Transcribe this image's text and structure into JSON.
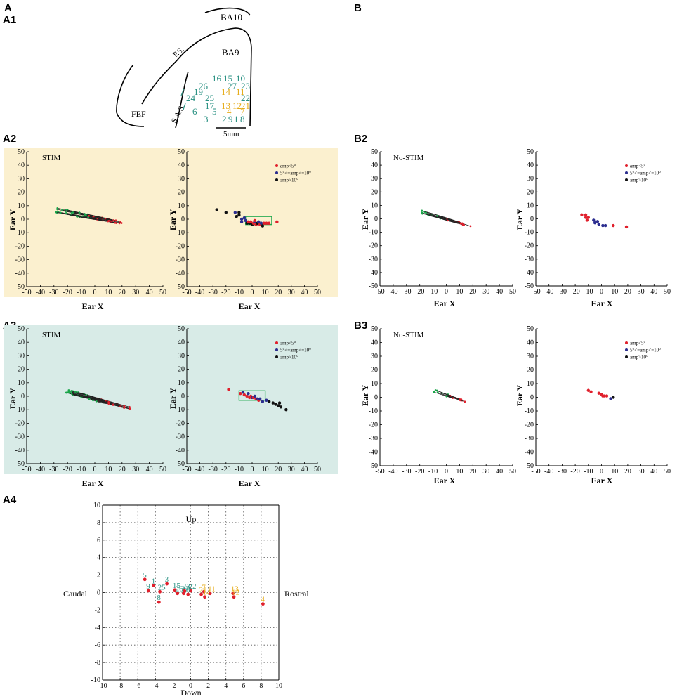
{
  "figure": {
    "panel_labels": {
      "A": "A",
      "A1": "A1",
      "A2": "A2",
      "A3": "A3",
      "A4": "A4",
      "B": "B",
      "B2": "B2",
      "B3": "B3"
    },
    "colors": {
      "stim_a2_bg": "#fbf0cf",
      "stim_a3_bg": "#d8ebe7",
      "teal": "#2a9183",
      "yellow": "#e6ac1a",
      "red": "#e0202c",
      "blue": "#2b2d8f",
      "black": "#111111",
      "green": "#1aa64a"
    }
  },
  "map_a1": {
    "labels": {
      "ba10": "BA10",
      "ba9": "BA9",
      "ps": "P.S.",
      "sas": "S.A.S.",
      "fef": "FEF",
      "scale": "5mm"
    },
    "sites": [
      {
        "n": "16",
        "c": "teal"
      },
      {
        "n": "15",
        "c": "teal"
      },
      {
        "n": "10",
        "c": "teal"
      },
      {
        "n": "27",
        "c": "teal"
      },
      {
        "n": "23",
        "c": "teal"
      },
      {
        "n": "26",
        "c": "teal"
      },
      {
        "n": "19",
        "c": "teal"
      },
      {
        "n": "14",
        "c": "yellow"
      },
      {
        "n": "11",
        "c": "yellow"
      },
      {
        "n": "24",
        "c": "teal"
      },
      {
        "n": "25",
        "c": "teal"
      },
      {
        "n": "22",
        "c": "teal"
      },
      {
        "n": "17",
        "c": "teal"
      },
      {
        "n": "13",
        "c": "yellow"
      },
      {
        "n": "12",
        "c": "yellow"
      },
      {
        "n": "21",
        "c": "yellow"
      },
      {
        "n": "6",
        "c": "teal"
      },
      {
        "n": "5",
        "c": "teal"
      },
      {
        "n": "4",
        "c": "yellow"
      },
      {
        "n": "7",
        "c": "yellow"
      },
      {
        "n": "3",
        "c": "teal"
      },
      {
        "n": "2",
        "c": "teal"
      },
      {
        "n": "9",
        "c": "teal"
      },
      {
        "n": "1",
        "c": "teal"
      },
      {
        "n": "8",
        "c": "teal"
      }
    ]
  },
  "chart_data": [
    {
      "id": "A2-left",
      "type": "line",
      "title": "STIM",
      "xlabel": "Ear X",
      "ylabel": "Ear Y",
      "xlim": [
        -50,
        50
      ],
      "ylim": [
        -50,
        50
      ],
      "xticks": [
        -50,
        -40,
        -30,
        -20,
        -10,
        0,
        10,
        20,
        30,
        40,
        50
      ],
      "yticks": [
        50,
        40,
        30,
        20,
        10,
        0,
        -10,
        -20,
        -30,
        -40,
        -50
      ],
      "trajectories": {
        "count": 30,
        "start": [
          -30,
          7
        ],
        "end": [
          21,
          -3
        ],
        "center": [
          5,
          -3
        ],
        "spread": 4
      }
    },
    {
      "id": "A2-right",
      "type": "scatter",
      "xlabel": "Ear X",
      "ylabel": "Ear Y",
      "xlim": [
        -50,
        50
      ],
      "ylim": [
        -50,
        50
      ],
      "xticks": [
        -50,
        -40,
        -30,
        -20,
        -10,
        0,
        10,
        20,
        30,
        40,
        50
      ],
      "yticks": [
        50,
        40,
        30,
        20,
        10,
        0,
        -10,
        -20,
        -30,
        -40,
        -50
      ],
      "legend": [
        "amp<5°",
        "5°<=amp<=10°",
        "amp>10°"
      ],
      "box": {
        "x": [
          -5,
          15
        ],
        "y": [
          -4,
          2
        ]
      },
      "points": [
        {
          "x": -27,
          "y": 7,
          "c": "black"
        },
        {
          "x": -20,
          "y": 5,
          "c": "black"
        },
        {
          "x": -13,
          "y": 5,
          "c": "blue"
        },
        {
          "x": -12,
          "y": 2,
          "c": "black"
        },
        {
          "x": -10,
          "y": 3,
          "c": "black"
        },
        {
          "x": -10,
          "y": 5,
          "c": "black"
        },
        {
          "x": -8,
          "y": 0,
          "c": "blue"
        },
        {
          "x": -8,
          "y": -2,
          "c": "blue"
        },
        {
          "x": -6,
          "y": 1,
          "c": "blue"
        },
        {
          "x": -5,
          "y": -1,
          "c": "blue"
        },
        {
          "x": -4,
          "y": -3,
          "c": "black"
        },
        {
          "x": -2,
          "y": -3,
          "c": "black"
        },
        {
          "x": -1,
          "y": -2,
          "c": "red"
        },
        {
          "x": 0,
          "y": -4,
          "c": "black"
        },
        {
          "x": 1,
          "y": -3,
          "c": "red"
        },
        {
          "x": 2,
          "y": -2,
          "c": "blue"
        },
        {
          "x": 3,
          "y": -4,
          "c": "red"
        },
        {
          "x": 4,
          "y": -3,
          "c": "black"
        },
        {
          "x": 5,
          "y": -2,
          "c": "blue"
        },
        {
          "x": 6,
          "y": -4,
          "c": "red"
        },
        {
          "x": 7,
          "y": -3,
          "c": "blue"
        },
        {
          "x": 8,
          "y": -5,
          "c": "black"
        },
        {
          "x": 9,
          "y": -3,
          "c": "red"
        },
        {
          "x": 11,
          "y": -3,
          "c": "red"
        },
        {
          "x": 13,
          "y": -3,
          "c": "red"
        },
        {
          "x": 19,
          "y": -2,
          "c": "red"
        },
        {
          "x": 2,
          "y": -1,
          "c": "red"
        },
        {
          "x": -3,
          "y": -2,
          "c": "red"
        }
      ]
    },
    {
      "id": "A3-left",
      "type": "line",
      "title": "STIM",
      "xlabel": "Ear X",
      "ylabel": "Ear Y",
      "xlim": [
        -50,
        50
      ],
      "ylim": [
        -50,
        50
      ],
      "xticks": [
        -50,
        -40,
        -30,
        -20,
        -10,
        0,
        10,
        20,
        30,
        40,
        50
      ],
      "yticks": [
        50,
        40,
        30,
        20,
        10,
        0,
        -10,
        -20,
        -30,
        -40,
        -50
      ],
      "trajectories": {
        "count": 30,
        "start": [
          -22,
          4
        ],
        "end": [
          26,
          -9
        ],
        "center": [
          5,
          -2
        ],
        "spread": 3
      }
    },
    {
      "id": "A3-right",
      "type": "scatter",
      "xlabel": "Ear X",
      "ylabel": "Ear Y",
      "xlim": [
        -50,
        50
      ],
      "ylim": [
        -50,
        50
      ],
      "xticks": [
        -50,
        -40,
        -30,
        -20,
        -10,
        0,
        10,
        20,
        30,
        40,
        50
      ],
      "yticks": [
        50,
        40,
        30,
        20,
        10,
        0,
        -10,
        -20,
        -30,
        -40,
        -50
      ],
      "legend": [
        "amp<5°",
        "5°<=amp<=10°",
        "amp>10°"
      ],
      "box": {
        "x": [
          -10,
          10
        ],
        "y": [
          -3,
          4
        ]
      },
      "points": [
        {
          "x": -18,
          "y": 5,
          "c": "red"
        },
        {
          "x": -9,
          "y": 2,
          "c": "red"
        },
        {
          "x": -7,
          "y": 3,
          "c": "blue"
        },
        {
          "x": -6,
          "y": 1,
          "c": "red"
        },
        {
          "x": -4,
          "y": 0,
          "c": "red"
        },
        {
          "x": -3,
          "y": 2,
          "c": "blue"
        },
        {
          "x": -1,
          "y": 0,
          "c": "red"
        },
        {
          "x": 0,
          "y": -1,
          "c": "blue"
        },
        {
          "x": 1,
          "y": -1,
          "c": "red"
        },
        {
          "x": 2,
          "y": 0,
          "c": "blue"
        },
        {
          "x": 3,
          "y": -2,
          "c": "red"
        },
        {
          "x": 4,
          "y": -2,
          "c": "blue"
        },
        {
          "x": 5,
          "y": -3,
          "c": "red"
        },
        {
          "x": 6,
          "y": -2,
          "c": "blue"
        },
        {
          "x": 8,
          "y": -4,
          "c": "blue"
        },
        {
          "x": 11,
          "y": -3,
          "c": "blue"
        },
        {
          "x": 13,
          "y": -4,
          "c": "black"
        },
        {
          "x": 16,
          "y": -5,
          "c": "black"
        },
        {
          "x": 18,
          "y": -6,
          "c": "black"
        },
        {
          "x": 20,
          "y": -7,
          "c": "black"
        },
        {
          "x": 21,
          "y": -5,
          "c": "black"
        },
        {
          "x": 22,
          "y": -8,
          "c": "black"
        },
        {
          "x": 26,
          "y": -10,
          "c": "black"
        },
        {
          "x": -2,
          "y": -1,
          "c": "red"
        }
      ]
    },
    {
      "id": "B2-left",
      "type": "line",
      "title": "No-STIM",
      "xlabel": "Ear X",
      "ylabel": "Ear Y",
      "xlim": [
        -50,
        50
      ],
      "ylim": [
        -50,
        50
      ],
      "xticks": [
        -50,
        -40,
        -30,
        -20,
        -10,
        0,
        10,
        20,
        30,
        40,
        50
      ],
      "yticks": [
        50,
        40,
        30,
        20,
        10,
        0,
        -10,
        -20,
        -30,
        -40,
        -50
      ],
      "trajectories": {
        "count": 12,
        "start": [
          -19,
          5
        ],
        "end": [
          20,
          -6
        ],
        "center": [
          0,
          -2
        ],
        "spread": 2.5
      }
    },
    {
      "id": "B2-right",
      "type": "scatter",
      "xlabel": "Ear X",
      "ylabel": "Ear Y",
      "xlim": [
        -50,
        50
      ],
      "ylim": [
        -50,
        50
      ],
      "xticks": [
        -50,
        -40,
        -30,
        -20,
        -10,
        0,
        10,
        20,
        30,
        40,
        50
      ],
      "yticks": [
        50,
        40,
        30,
        20,
        10,
        0,
        -10,
        -20,
        -30,
        -40,
        -50
      ],
      "legend": [
        "amp<5°",
        "5°<=amp<=10°",
        "amp>10°"
      ],
      "points": [
        {
          "x": -15,
          "y": 3,
          "c": "red"
        },
        {
          "x": -12,
          "y": 1,
          "c": "red"
        },
        {
          "x": -12,
          "y": 3,
          "c": "red"
        },
        {
          "x": -11,
          "y": -1,
          "c": "red"
        },
        {
          "x": -10,
          "y": 1,
          "c": "red"
        },
        {
          "x": -6,
          "y": -1,
          "c": "blue"
        },
        {
          "x": -5,
          "y": -3,
          "c": "blue"
        },
        {
          "x": -3,
          "y": -2,
          "c": "blue"
        },
        {
          "x": -2,
          "y": -4,
          "c": "blue"
        },
        {
          "x": 1,
          "y": -5,
          "c": "blue"
        },
        {
          "x": 3,
          "y": -5,
          "c": "blue"
        },
        {
          "x": 9,
          "y": -5,
          "c": "red"
        },
        {
          "x": 19,
          "y": -6,
          "c": "red"
        }
      ]
    },
    {
      "id": "B3-left",
      "type": "line",
      "title": "No-STIM",
      "xlabel": "Ear X",
      "ylabel": "Ear Y",
      "xlim": [
        -50,
        50
      ],
      "ylim": [
        -50,
        50
      ],
      "xticks": [
        -50,
        -40,
        -30,
        -20,
        -10,
        0,
        10,
        20,
        30,
        40,
        50
      ],
      "yticks": [
        50,
        40,
        30,
        20,
        10,
        0,
        -10,
        -20,
        -30,
        -40,
        -50
      ],
      "trajectories": {
        "count": 9,
        "start": [
          -10,
          5
        ],
        "end": [
          14,
          -3
        ],
        "center": [
          2,
          1
        ],
        "spread": 2
      }
    },
    {
      "id": "B3-right",
      "type": "scatter",
      "xlabel": "Ear X",
      "ylabel": "Ear Y",
      "xlim": [
        -50,
        50
      ],
      "ylim": [
        -50,
        50
      ],
      "xticks": [
        -50,
        -40,
        -30,
        -20,
        -10,
        0,
        10,
        20,
        30,
        40,
        50
      ],
      "yticks": [
        50,
        40,
        30,
        20,
        10,
        0,
        -10,
        -20,
        -30,
        -40,
        -50
      ],
      "legend": [
        "amp<5°",
        "5°<=amp<=10°",
        "amp>10°"
      ],
      "points": [
        {
          "x": -10,
          "y": 5,
          "c": "red"
        },
        {
          "x": -8,
          "y": 4,
          "c": "red"
        },
        {
          "x": -2,
          "y": 3,
          "c": "red"
        },
        {
          "x": 0,
          "y": 2,
          "c": "red"
        },
        {
          "x": 1,
          "y": 1,
          "c": "red"
        },
        {
          "x": 2,
          "y": 1,
          "c": "red"
        },
        {
          "x": 4,
          "y": 1,
          "c": "red"
        },
        {
          "x": 7,
          "y": -1,
          "c": "blue"
        },
        {
          "x": 9,
          "y": 0,
          "c": "black"
        }
      ]
    },
    {
      "id": "A4",
      "type": "scatter",
      "xlabel": "Down",
      "ylabel": "",
      "top_label": "Up",
      "left_label": "Caudal",
      "right_label": "Rostral",
      "xlim": [
        -10,
        10
      ],
      "ylim": [
        -10,
        10
      ],
      "xticks": [
        -10,
        -8,
        -6,
        -4,
        -2,
        0,
        2,
        4,
        6,
        8,
        10
      ],
      "yticks": [
        10,
        8,
        6,
        4,
        2,
        0,
        -2,
        -4,
        -6,
        -8,
        -10
      ],
      "points": [
        {
          "n": "5",
          "x": -5.2,
          "y": 1.5,
          "lc": "teal"
        },
        {
          "n": "1",
          "x": -4.2,
          "y": 0.8,
          "lc": "teal"
        },
        {
          "n": "9",
          "x": -4.8,
          "y": 0.2,
          "lc": "teal"
        },
        {
          "n": "25",
          "x": -3.5,
          "y": 0.1,
          "lc": "teal"
        },
        {
          "n": "3",
          "x": -2.7,
          "y": 1.0,
          "lc": "teal"
        },
        {
          "n": "15",
          "x": -1.8,
          "y": 0.3,
          "lc": "teal"
        },
        {
          "n": "8",
          "x": -3.6,
          "y": -1.1,
          "lc": "teal"
        },
        {
          "n": "26",
          "x": -1.5,
          "y": -0.1,
          "lc": "teal"
        },
        {
          "n": "27",
          "x": -0.8,
          "y": -0.1,
          "lc": "teal"
        },
        {
          "n": "23",
          "x": -0.7,
          "y": 0.2,
          "lc": "teal"
        },
        {
          "n": "22",
          "x": 0.0,
          "y": 0.2,
          "lc": "teal"
        },
        {
          "n": "6",
          "x": -0.3,
          "y": -0.2,
          "lc": "teal"
        },
        {
          "n": "7",
          "x": 1.5,
          "y": 0.1,
          "lc": "yellow"
        },
        {
          "n": "21",
          "x": 1.2,
          "y": -0.2,
          "lc": "yellow"
        },
        {
          "n": "14",
          "x": 1.6,
          "y": -0.5,
          "lc": "yellow"
        },
        {
          "n": "11",
          "x": 2.2,
          "y": -0.1,
          "lc": "yellow"
        },
        {
          "n": "13",
          "x": 4.8,
          "y": -0.1,
          "lc": "yellow"
        },
        {
          "n": "12",
          "x": 4.9,
          "y": -0.5,
          "lc": "yellow"
        },
        {
          "n": "4",
          "x": 8.2,
          "y": -1.3,
          "lc": "yellow"
        }
      ]
    }
  ]
}
